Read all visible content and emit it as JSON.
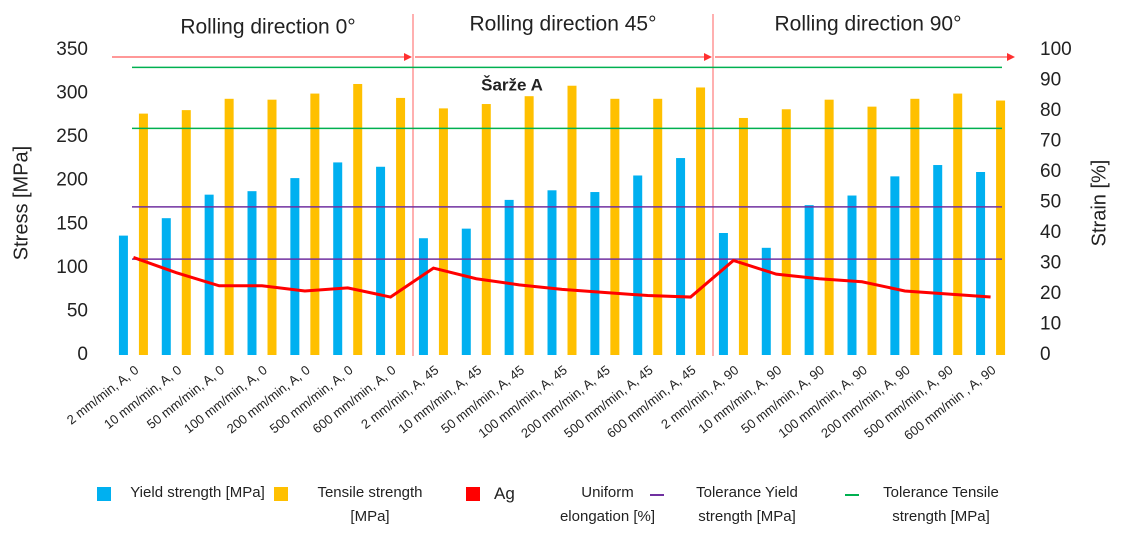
{
  "chart_data": {
    "type": "bar",
    "title": "Šarže A",
    "sections": [
      "Rolling direction 0°",
      "Rolling direction 45°",
      "Rolling direction 90°"
    ],
    "y_label": "Stress [MPa]",
    "y2_label": "Strain [%]",
    "categories": [
      "2 mm/min, A, 0",
      "10 mm/min, A, 0",
      "50 mm/min, A, 0",
      "100 mm/min, A, 0",
      "200 mm/min, A, 0",
      "500 mm/min, A, 0",
      "600 mm/min, A, 0",
      "2 mm/min, A, 45",
      "10 mm/min, A, 45",
      "50 mm/min, A, 45",
      "100 mm/min, A, 45",
      "200 mm/min, A, 45",
      "500 mm/min, A, 45",
      "600 mm/min, A, 45",
      "2 mm/min, A, 90",
      "10 mm/min, A, 90",
      "50 mm/min, A, 90",
      "100 mm/min, A, 90",
      "200 mm/min, A, 90",
      "500 mm/min, A, 90",
      "600 mm/min , A, 90"
    ],
    "series": [
      {
        "name": "Yield strength [MPa]",
        "color": "#00b0f0",
        "values": [
          137,
          157,
          184,
          188,
          203,
          221,
          216,
          134,
          145,
          178,
          189,
          187,
          206,
          226,
          140,
          123,
          172,
          183,
          205,
          218,
          210
        ]
      },
      {
        "name": "Tensile strength [MPa]",
        "color": "#ffc000",
        "values": [
          277,
          281,
          294,
          293,
          300,
          311,
          295,
          283,
          288,
          297,
          309,
          294,
          294,
          307,
          272,
          282,
          293,
          285,
          294,
          300,
          292
        ]
      },
      {
        "name": "Uniform elongation [%]",
        "legend_label": "Ag",
        "color": "#ff0000",
        "type": "line",
        "axis": "y2",
        "values": [
          32,
          27,
          22.7,
          22.7,
          21,
          22,
          19,
          28.5,
          25,
          23,
          21.5,
          20.5,
          19.5,
          19,
          31,
          26.5,
          25,
          24,
          21,
          20,
          19
        ]
      }
    ],
    "tolerances": [
      {
        "name": "Tolerance Yield strength [MPa]",
        "color": "#7030a0",
        "values": [
          110,
          170
        ]
      },
      {
        "name": "Tolerance Tensile strength [MPa]",
        "color": "#00b050",
        "values": [
          260,
          330
        ]
      }
    ],
    "ylim": [
      0,
      350
    ],
    "yticks": [
      0,
      50,
      100,
      150,
      200,
      250,
      300,
      350
    ],
    "y2lim": [
      0,
      100
    ],
    "y2ticks": [
      0,
      10,
      20,
      30,
      40,
      50,
      60,
      70,
      80,
      90,
      100
    ]
  }
}
